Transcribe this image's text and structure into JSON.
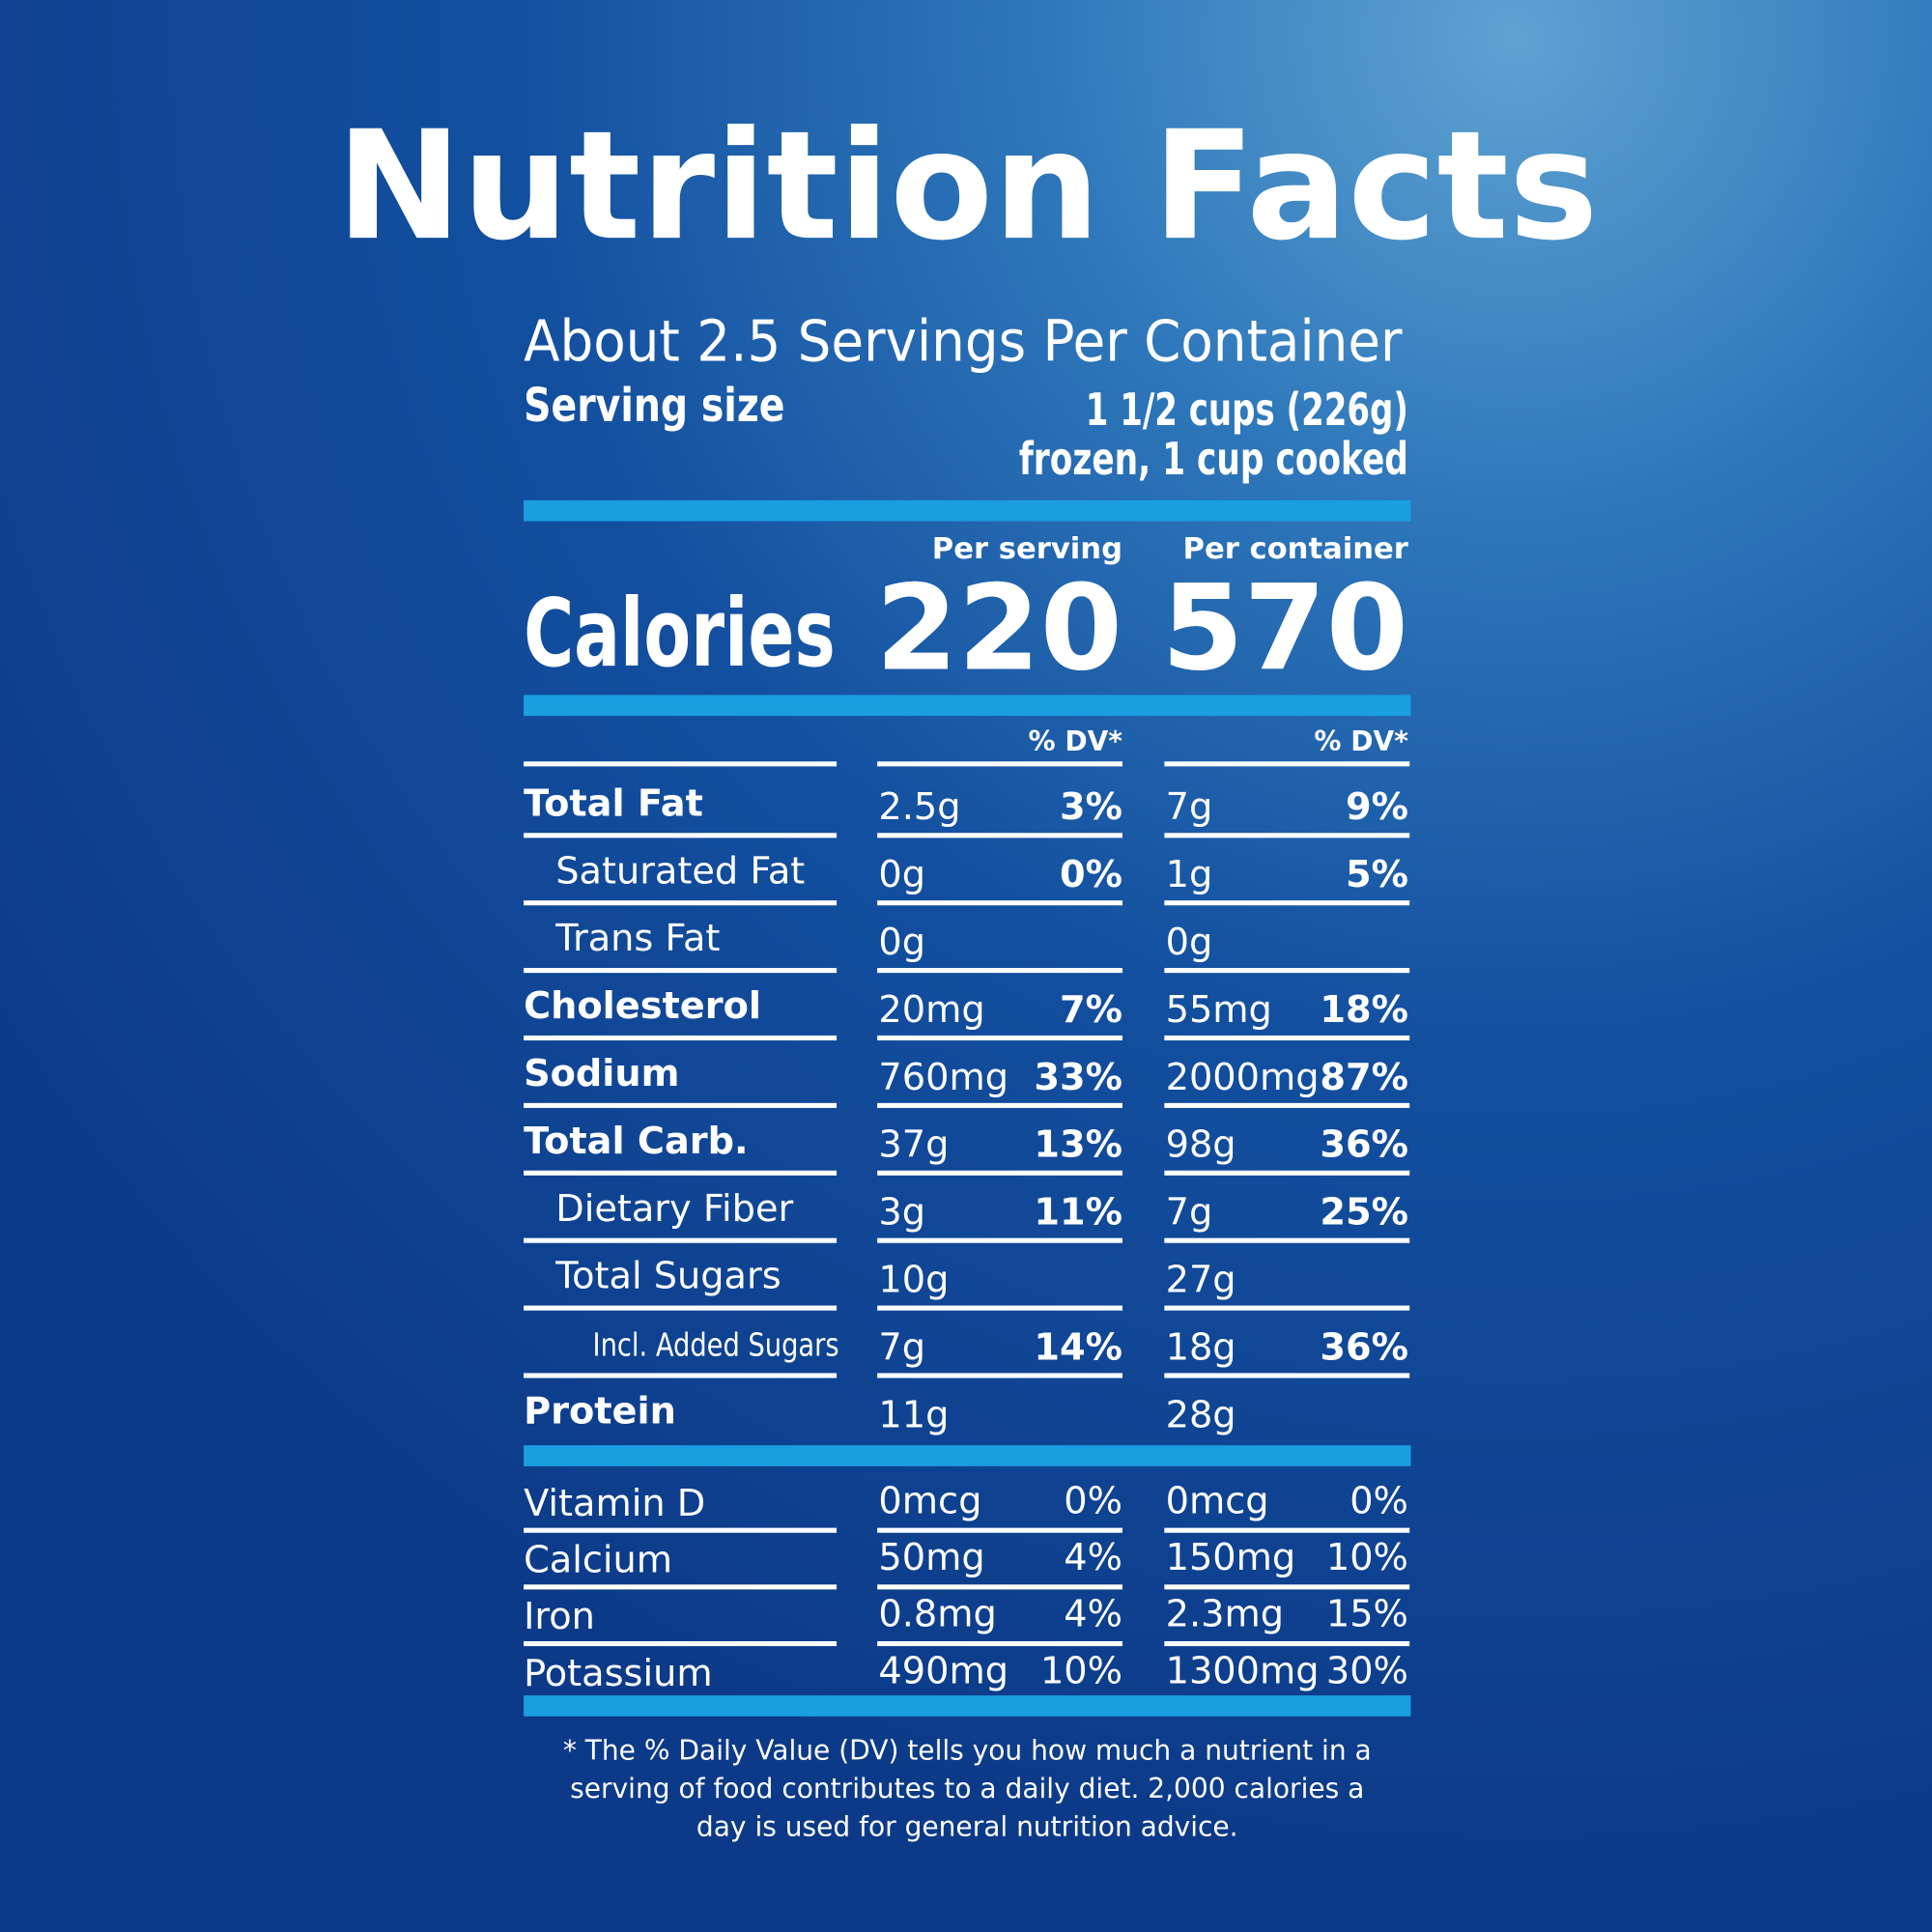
{
  "header": {
    "title": "Nutrition Facts",
    "servings": "About 2.5 Servings Per Container",
    "serving_size_label": "Serving size",
    "serving_size_lines": [
      "1 1/2 cups (226g)",
      "frozen, 1 cup cooked"
    ]
  },
  "calories": {
    "per_serving_label": "Per serving",
    "per_container_label": "Per container",
    "label": "Calories",
    "per_serving": "220",
    "per_container": "570"
  },
  "nutrients": {
    "dv_headers": [
      "% DV*",
      "% DV*"
    ],
    "rows": [
      [
        "Total Fat",
        "2.5g",
        "3%",
        "7g",
        "9%"
      ],
      [
        "Saturated Fat",
        "0g",
        "0%",
        "1g",
        "5%"
      ],
      [
        "Trans Fat",
        "0g",
        null,
        "0g",
        null
      ],
      [
        "Cholesterol",
        "20mg",
        "7%",
        "55mg",
        "18%"
      ],
      [
        "Sodium",
        "760mg",
        "33%",
        "2000mg",
        "87%"
      ],
      [
        "Total Carb.",
        "37g",
        "13%",
        "98g",
        "36%"
      ],
      [
        "Dietary Fiber",
        "3g",
        "11%",
        "7g",
        "25%"
      ],
      [
        "Total Sugars",
        "10g",
        null,
        "27g",
        null
      ],
      [
        "Incl. Added Sugars",
        "7g",
        "14%",
        "18g",
        "36%"
      ],
      [
        "Protein",
        "11g",
        null,
        "28g",
        null
      ]
    ]
  },
  "vitamins": {
    "rows": [
      [
        "Vitamin D",
        "0mcg",
        "0%",
        "0mcg",
        "0%"
      ],
      [
        "Calcium",
        "50mg",
        "4%",
        "150mg",
        "10%"
      ],
      [
        "Iron",
        "0.8mg",
        "4%",
        "2.3mg",
        "15%"
      ],
      [
        "Potassium",
        "490mg",
        "10%",
        "1300mg",
        "30%"
      ]
    ]
  },
  "footnote": [
    "* The % Daily Value (DV) tells you how much a nutrient in a",
    "serving of food contributes to a daily diet. 2,000 calories a",
    "day is used for general nutrition advice."
  ]
}
